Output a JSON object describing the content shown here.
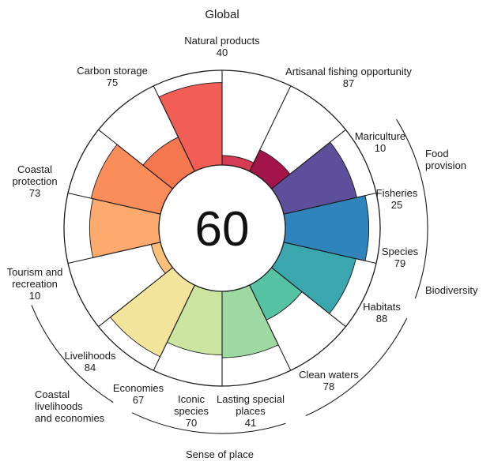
{
  "chart_data": {
    "type": "polar-bar",
    "title": "Global",
    "center_value": "60",
    "max": 100,
    "categories": [
      {
        "name": "Natural products",
        "value": 40,
        "color": "#f4774f",
        "label": [
          "Natural products",
          "40"
        ]
      },
      {
        "name": "Artisanal fishing opportunity",
        "value": 87,
        "color": "#f25d56",
        "label": [
          "Artisanal fishing opportunity",
          "87"
        ]
      },
      {
        "name": "Mariculture",
        "value": 10,
        "color": "#d63b55",
        "label": [
          "Mariculture",
          "10"
        ]
      },
      {
        "name": "Fisheries",
        "value": 25,
        "color": "#a3144b",
        "label": [
          "Fisheries",
          "25"
        ]
      },
      {
        "name": "Species",
        "value": 79,
        "color": "#5d4f9b",
        "label": [
          "Species",
          "79"
        ]
      },
      {
        "name": "Habitats",
        "value": 88,
        "color": "#2f85bb",
        "label": [
          "Habitats",
          "88"
        ]
      },
      {
        "name": "Clean waters",
        "value": 78,
        "color": "#3aa6ae",
        "label": [
          "Clean waters",
          "78"
        ]
      },
      {
        "name": "Lasting special places",
        "value": 41,
        "color": "#55c2a1",
        "label": [
          "Lasting special",
          "places",
          "41"
        ]
      },
      {
        "name": "Iconic species",
        "value": 70,
        "color": "#9ed8a3",
        "label": [
          "Iconic",
          "species",
          "70"
        ]
      },
      {
        "name": "Economies",
        "value": 67,
        "color": "#cbe49f",
        "label": [
          "Economies",
          "67"
        ]
      },
      {
        "name": "Livelihoods",
        "value": 84,
        "color": "#f2e49b",
        "label": [
          "Livelihoods",
          "84"
        ]
      },
      {
        "name": "Tourism and recreation",
        "value": 10,
        "color": "#fbc17a",
        "label": [
          "Tourism and",
          "recreation",
          "10"
        ]
      },
      {
        "name": "Coastal protection",
        "value": 73,
        "color": "#fca96e",
        "label": [
          "Coastal",
          "protection",
          "73"
        ]
      },
      {
        "name": "Carbon storage",
        "value": 75,
        "color": "#fb8d5b",
        "label": [
          "Carbon storage",
          "75"
        ]
      }
    ],
    "groups": [
      {
        "label": [
          "Food",
          "provision"
        ]
      },
      {
        "label": [
          "Biodiversity"
        ]
      },
      {
        "label": [
          "Sense of place"
        ]
      },
      {
        "label": [
          "Coastal",
          "livelihoods",
          "and economies"
        ]
      }
    ]
  }
}
